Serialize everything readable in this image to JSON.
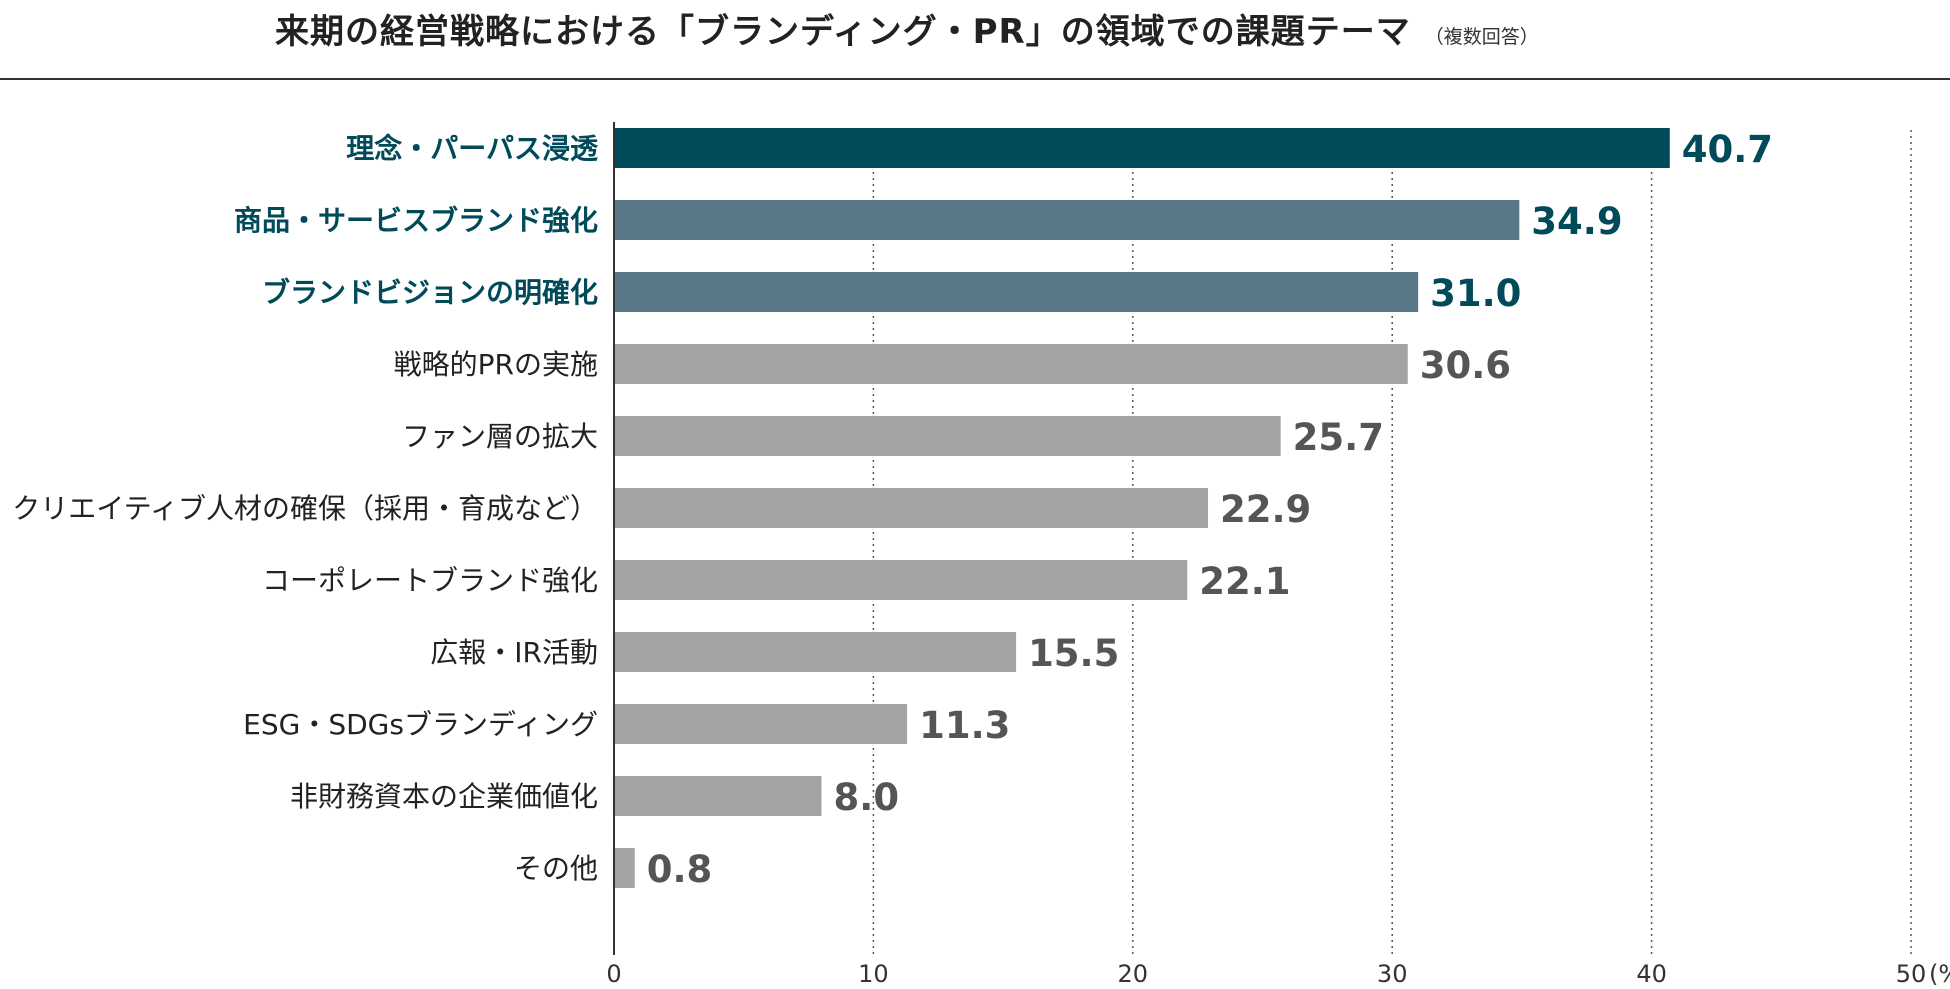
{
  "title": "来期の経営戦略における「ブランディング・PR」の領域での課題テーマ",
  "subtitle": "（複数回答）",
  "colors": {
    "top": "#004a5a",
    "highlight": "#587887",
    "other": "#a3a3a3",
    "other_text": "#555555",
    "category_text": "#222222"
  },
  "chart_data": {
    "type": "bar",
    "orientation": "horizontal",
    "title": "来期の経営戦略における「ブランディング・PR」の領域での課題テーマ",
    "subtitle": "（複数回答）",
    "xlim": [
      0,
      50
    ],
    "ticks": [
      "0",
      "10",
      "20",
      "30",
      "40",
      "50"
    ],
    "tick_values": [
      0,
      10,
      20,
      30,
      40,
      50
    ],
    "unit": "(%)",
    "grid": "vertical dotted",
    "categories": [
      "理念・パーパス浸透",
      "商品・サービスブランド強化",
      "ブランドビジョンの明確化",
      "戦略的PRの実施",
      "ファン層の拡大",
      "クリエイティブ人材の確保（採用・育成など）",
      "コーポレートブランド強化",
      "広報・IR活動",
      "ESG・SDGsブランディング",
      "非財務資本の企業価値化",
      "その他"
    ],
    "values": [
      40.7,
      34.9,
      31.0,
      30.6,
      25.7,
      22.9,
      22.1,
      15.5,
      11.3,
      8.0,
      0.8
    ],
    "value_labels": [
      "40.7",
      "34.9",
      "31.0",
      "30.6",
      "25.7",
      "22.9",
      "22.1",
      "15.5",
      "11.3",
      "8.0",
      "0.8"
    ],
    "emphasis": [
      "top",
      "highlight",
      "highlight",
      "other",
      "other",
      "other",
      "other",
      "other",
      "other",
      "other",
      "other"
    ]
  }
}
